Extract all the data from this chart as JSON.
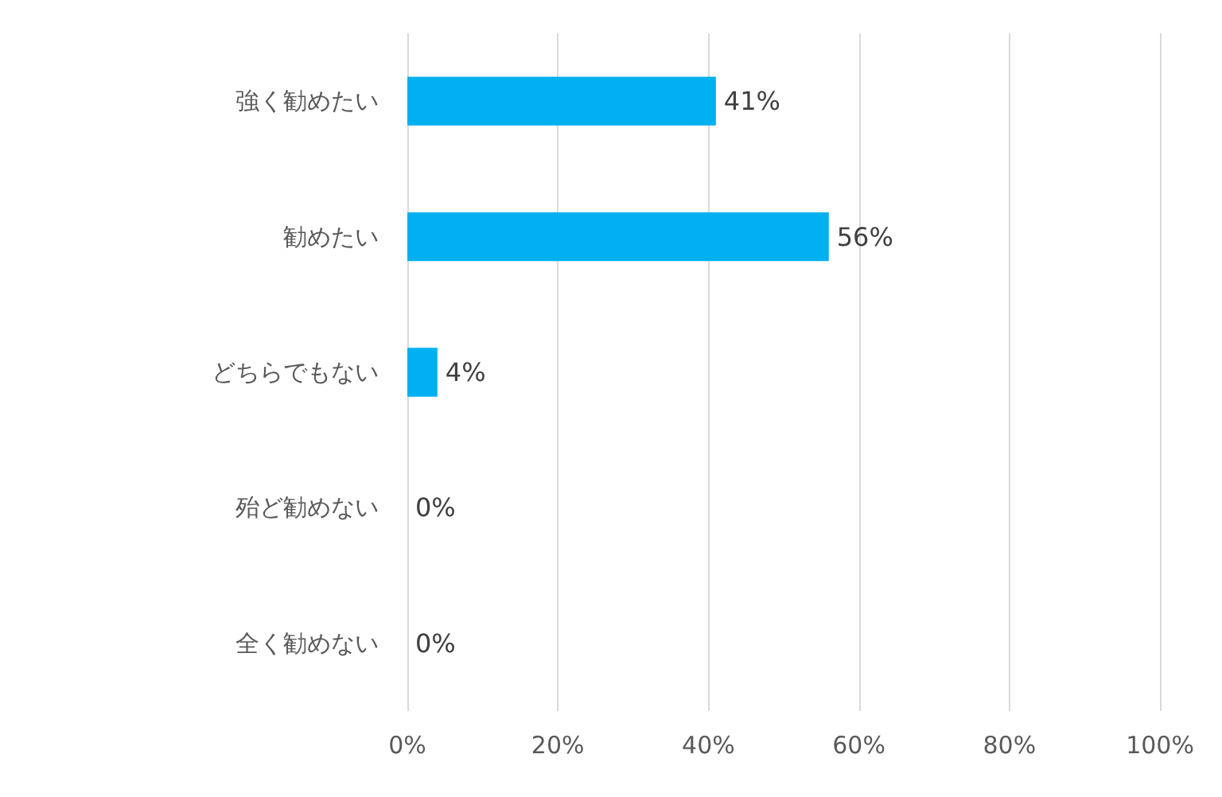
{
  "chart_data": {
    "type": "bar",
    "orientation": "horizontal",
    "categories": [
      "強く勧めたい",
      "勧めたい",
      "どちらでもない",
      "殆ど勧めない",
      "全く勧めない"
    ],
    "values": [
      41,
      56,
      4,
      0,
      0
    ],
    "value_labels": [
      "41%",
      "56%",
      "4%",
      "0%",
      "0%"
    ],
    "color": "#00b0f0",
    "xlim": [
      0,
      100
    ],
    "xticks": [
      {
        "value": 0,
        "label": "0%"
      },
      {
        "value": 20,
        "label": "20%"
      },
      {
        "value": 40,
        "label": "40%"
      },
      {
        "value": 60,
        "label": "60%"
      },
      {
        "value": 80,
        "label": "80%"
      },
      {
        "value": 100,
        "label": "100%"
      }
    ],
    "grid": "x"
  }
}
